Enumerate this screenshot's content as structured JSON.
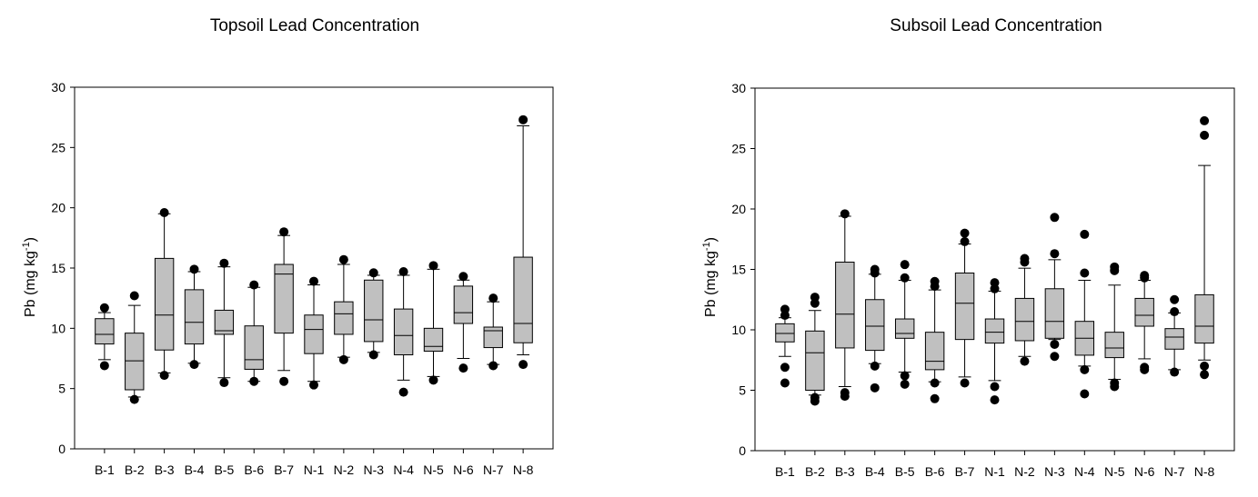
{
  "chart_data": [
    {
      "type": "box",
      "title": "Topsoil Lead Concentration",
      "ylabel": "Pb (mg kg",
      "ylabel_sup": "-1",
      "ylabel_end": ")",
      "ylim": [
        0,
        30
      ],
      "yticks": [
        0,
        5,
        10,
        15,
        20,
        25,
        30
      ],
      "categories": [
        "B-1",
        "B-2",
        "B-3",
        "B-4",
        "B-5",
        "B-6",
        "B-7",
        "N-1",
        "N-2",
        "N-3",
        "N-4",
        "N-5",
        "N-6",
        "N-7",
        "N-8"
      ],
      "box_color": "#c0c0c0",
      "boxes": [
        {
          "q1": 8.7,
          "median": 9.5,
          "q3": 10.8,
          "wlo": 7.4,
          "whi": 11.3,
          "out": [
            6.9,
            11.7
          ]
        },
        {
          "q1": 4.9,
          "median": 7.3,
          "q3": 9.6,
          "wlo": 4.3,
          "whi": 11.9,
          "out": [
            4.1,
            12.7
          ]
        },
        {
          "q1": 8.2,
          "median": 11.1,
          "q3": 15.8,
          "wlo": 6.3,
          "whi": 19.5,
          "out": [
            6.1,
            19.6
          ]
        },
        {
          "q1": 8.7,
          "median": 10.5,
          "q3": 13.2,
          "wlo": 7.1,
          "whi": 14.7,
          "out": [
            7.0,
            14.9
          ]
        },
        {
          "q1": 9.5,
          "median": 9.8,
          "q3": 11.5,
          "wlo": 5.9,
          "whi": 15.1,
          "out": [
            5.5,
            15.4
          ]
        },
        {
          "q1": 6.6,
          "median": 7.4,
          "q3": 10.2,
          "wlo": 5.6,
          "whi": 13.4,
          "out": [
            5.6,
            13.6
          ]
        },
        {
          "q1": 9.6,
          "median": 14.5,
          "q3": 15.3,
          "wlo": 6.5,
          "whi": 17.7,
          "out": [
            5.6,
            18.0
          ]
        },
        {
          "q1": 7.9,
          "median": 9.9,
          "q3": 11.1,
          "wlo": 5.6,
          "whi": 13.6,
          "out": [
            5.3,
            13.9
          ]
        },
        {
          "q1": 9.5,
          "median": 11.2,
          "q3": 12.2,
          "wlo": 7.6,
          "whi": 15.3,
          "out": [
            7.4,
            15.7
          ]
        },
        {
          "q1": 8.9,
          "median": 10.7,
          "q3": 14.0,
          "wlo": 8.0,
          "whi": 14.4,
          "out": [
            7.8,
            14.6
          ]
        },
        {
          "q1": 7.8,
          "median": 9.4,
          "q3": 11.6,
          "wlo": 5.7,
          "whi": 14.4,
          "out": [
            4.7,
            14.7
          ]
        },
        {
          "q1": 8.1,
          "median": 8.5,
          "q3": 10.0,
          "wlo": 6.0,
          "whi": 14.9,
          "out": [
            5.7,
            15.2
          ]
        },
        {
          "q1": 10.4,
          "median": 11.3,
          "q3": 13.5,
          "wlo": 7.5,
          "whi": 14.0,
          "out": [
            6.7,
            14.3
          ]
        },
        {
          "q1": 8.4,
          "median": 9.8,
          "q3": 10.1,
          "wlo": 7.0,
          "whi": 12.2,
          "out": [
            6.9,
            12.5
          ]
        },
        {
          "q1": 8.8,
          "median": 10.4,
          "q3": 15.9,
          "wlo": 7.8,
          "whi": 26.8,
          "out": [
            7.0,
            27.3
          ]
        }
      ]
    },
    {
      "type": "box",
      "title": "Subsoil Lead Concentration",
      "ylabel": "Pb (mg kg",
      "ylabel_sup": "-1",
      "ylabel_end": ")",
      "ylim": [
        0,
        30
      ],
      "yticks": [
        0,
        5,
        10,
        15,
        20,
        25,
        30
      ],
      "categories": [
        "B-1",
        "B-2",
        "B-3",
        "B-4",
        "B-5",
        "B-6",
        "B-7",
        "N-1",
        "N-2",
        "N-3",
        "N-4",
        "N-5",
        "N-6",
        "N-7",
        "N-8"
      ],
      "box_color": "#c0c0c0",
      "boxes": [
        {
          "q1": 9.0,
          "median": 9.7,
          "q3": 10.5,
          "wlo": 7.8,
          "whi": 11.0,
          "out": [
            5.6,
            6.9,
            11.2,
            11.7
          ]
        },
        {
          "q1": 5.0,
          "median": 8.1,
          "q3": 9.9,
          "wlo": 4.6,
          "whi": 11.6,
          "out": [
            4.1,
            4.4,
            12.2,
            12.7
          ]
        },
        {
          "q1": 8.5,
          "median": 11.3,
          "q3": 15.6,
          "wlo": 5.3,
          "whi": 19.4,
          "out": [
            4.5,
            4.8,
            19.6
          ]
        },
        {
          "q1": 8.3,
          "median": 10.3,
          "q3": 12.5,
          "wlo": 7.2,
          "whi": 14.6,
          "out": [
            5.2,
            7.0,
            14.7,
            15.0
          ]
        },
        {
          "q1": 9.3,
          "median": 9.7,
          "q3": 10.9,
          "wlo": 6.5,
          "whi": 14.1,
          "out": [
            5.5,
            6.2,
            14.3,
            15.4
          ]
        },
        {
          "q1": 6.7,
          "median": 7.4,
          "q3": 9.8,
          "wlo": 5.7,
          "whi": 13.3,
          "out": [
            4.3,
            5.6,
            13.6,
            14.0
          ]
        },
        {
          "q1": 9.2,
          "median": 12.2,
          "q3": 14.7,
          "wlo": 6.1,
          "whi": 17.1,
          "out": [
            5.6,
            17.3,
            18.0
          ]
        },
        {
          "q1": 8.9,
          "median": 9.8,
          "q3": 10.9,
          "wlo": 5.8,
          "whi": 13.2,
          "out": [
            4.2,
            5.3,
            13.4,
            13.9
          ]
        },
        {
          "q1": 9.1,
          "median": 10.7,
          "q3": 12.6,
          "wlo": 7.8,
          "whi": 15.1,
          "out": [
            7.4,
            15.6,
            15.9
          ]
        },
        {
          "q1": 9.3,
          "median": 10.7,
          "q3": 13.4,
          "wlo": 9.2,
          "whi": 15.8,
          "out": [
            7.8,
            8.8,
            16.3,
            19.3
          ]
        },
        {
          "q1": 7.9,
          "median": 9.3,
          "q3": 10.7,
          "wlo": 7.0,
          "whi": 14.1,
          "out": [
            4.7,
            6.7,
            14.7,
            17.9
          ]
        },
        {
          "q1": 7.7,
          "median": 8.5,
          "q3": 9.8,
          "wlo": 5.9,
          "whi": 13.7,
          "out": [
            5.3,
            5.6,
            14.9,
            15.2
          ]
        },
        {
          "q1": 10.3,
          "median": 11.2,
          "q3": 12.6,
          "wlo": 7.6,
          "whi": 14.1,
          "out": [
            6.7,
            6.9,
            14.3,
            14.5
          ]
        },
        {
          "q1": 8.4,
          "median": 9.4,
          "q3": 10.1,
          "wlo": 6.7,
          "whi": 11.4,
          "out": [
            6.5,
            11.5,
            12.5
          ]
        },
        {
          "q1": 8.9,
          "median": 10.3,
          "q3": 12.9,
          "wlo": 7.5,
          "whi": 23.6,
          "out": [
            6.3,
            7.0,
            26.1,
            27.3
          ]
        }
      ]
    }
  ]
}
